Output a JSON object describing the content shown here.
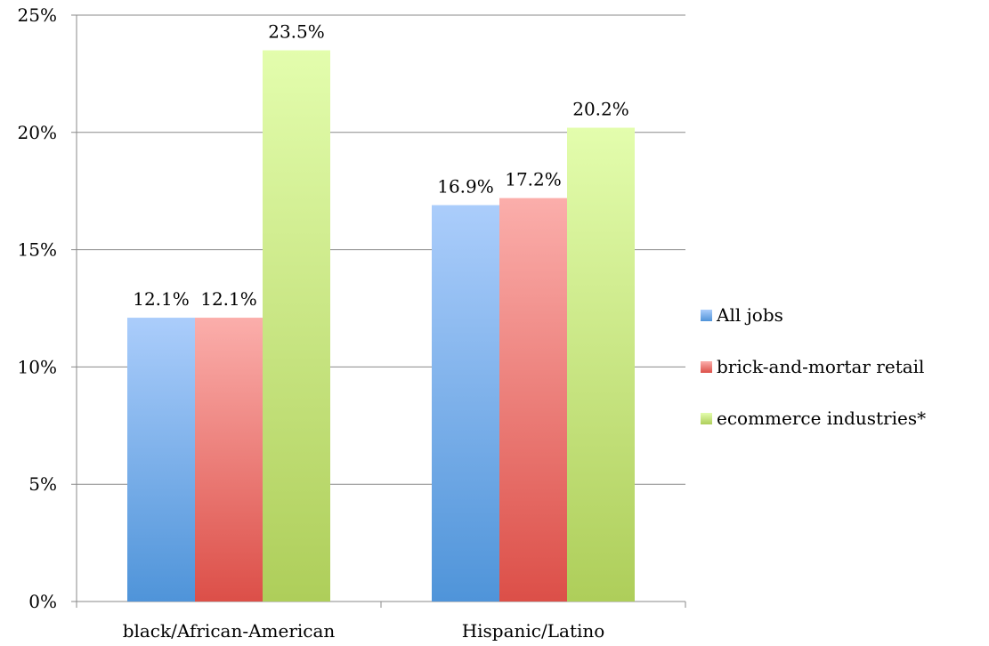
{
  "chart_data": {
    "type": "bar",
    "categories": [
      "black/African-American",
      "Hispanic/Latino"
    ],
    "series": [
      {
        "name": "All jobs",
        "values": [
          12.1,
          16.9
        ],
        "labels": [
          "12.1%",
          "16.9%"
        ],
        "color_top": "#abcdfb",
        "color_bottom": "#4f94d9"
      },
      {
        "name": "brick-and-mortar retail",
        "values": [
          12.1,
          17.2
        ],
        "labels": [
          "12.1%",
          "17.2%"
        ],
        "color_top": "#fbaeab",
        "color_bottom": "#dc4f48"
      },
      {
        "name": "ecommerce industries*",
        "values": [
          23.5,
          20.2
        ],
        "labels": [
          "23.5%",
          "20.2%"
        ],
        "color_top": "#e3fdad",
        "color_bottom": "#aece5a"
      }
    ],
    "ylim": [
      0,
      25
    ],
    "yticks": [
      "0%",
      "5%",
      "10%",
      "15%",
      "20%",
      "25%"
    ],
    "ytick_values": [
      0,
      5,
      10,
      15,
      20,
      25
    ],
    "grid": true,
    "legend_position": "right"
  }
}
